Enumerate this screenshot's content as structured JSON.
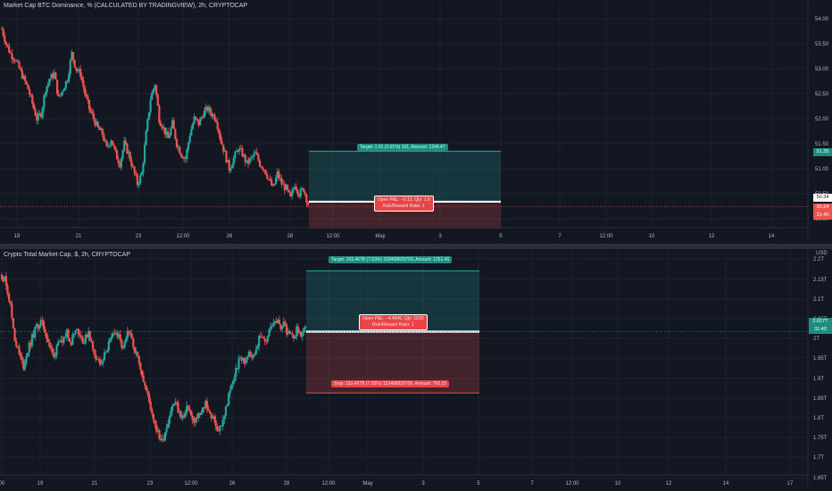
{
  "panels": [
    {
      "title": "Market Cap BTC Dominance, % (CALCULATED BY TRADINGVIEW), 2h, CRYPTOCAP",
      "price_ticks": [
        "54.00",
        "53.50",
        "53.00",
        "52.50",
        "52.00",
        "51.50",
        "51.00",
        "50.50",
        "50.00"
      ],
      "time_ticks": [
        "19",
        "21",
        "23",
        "12:00",
        "26",
        "28",
        "12:00",
        "May",
        "3",
        "5",
        "7",
        "12:00",
        "10",
        "12",
        "14"
      ],
      "current_price": "50.24",
      "countdown": "31:40",
      "target_price_label": "51.35",
      "entry_price_label": "50.34",
      "target_label": "Target: 1.01 (2.01%) 101, Amount: 1244.47",
      "open_pnl_label": "Open P&L: −0.12, Qty: 1.6",
      "risk_reward_label": "Risk/Reward Ratio: 1"
    },
    {
      "title": "Crypto Total Market Cap, $, 2h, CRYPTOCAP",
      "currency": "USD",
      "price_ticks": [
        "2.2T",
        "2.15T",
        "2.1T",
        "2.05T",
        "2T",
        "1.95T",
        "1.9T",
        "1.85T",
        "1.8T",
        "1.75T",
        "1.7T",
        "1.65T"
      ],
      "time_ticks": [
        "00",
        "19",
        "21",
        "23",
        "12:00",
        "26",
        "28",
        "12:00",
        "May",
        "3",
        "5",
        "7",
        "12:00",
        "10",
        "12",
        "14",
        "17"
      ],
      "current_price": "2.017T",
      "countdown": "31:40",
      "target_label": "Target: 153.467B (7.53%) 153468829709, Amount: 1251.46",
      "stop_label": "Stop: 153.467B (7.53%) 153468829709, Amount: 750.15",
      "open_pnl_label": "Open P&L: −4.4546, Qty: 1633",
      "risk_reward_label": "Risk/Reward Ratio: 1"
    }
  ],
  "colors": {
    "up": "#26a69a",
    "down": "#ef5350",
    "background": "#131722",
    "grid": "#1e222d"
  },
  "chart_data": [
    {
      "type": "candlestick",
      "title": "Market Cap BTC Dominance, % (CALCULATED BY TRADINGVIEW), 2h, CRYPTOCAP",
      "ylim": [
        49.8,
        54.2
      ],
      "x": [
        "19",
        "21",
        "23",
        "26",
        "28"
      ],
      "close_path": [
        53.8,
        53.5,
        53.3,
        53.2,
        53.0,
        52.8,
        52.6,
        52.3,
        52.0,
        52.1,
        52.6,
        52.8,
        52.9,
        52.4,
        52.6,
        52.8,
        53.3,
        53.0,
        52.9,
        52.5,
        52.2,
        52.0,
        51.8,
        51.7,
        51.4,
        51.6,
        51.3,
        51.1,
        51.5,
        51.3,
        51.0,
        50.7,
        50.9,
        51.7,
        52.4,
        52.7,
        52.0,
        51.8,
        51.6,
        51.9,
        51.5,
        51.3,
        51.2,
        51.7,
        52.0,
        51.9,
        52.1,
        52.2,
        52.1,
        52.0,
        51.6,
        51.3,
        51.0,
        51.2,
        51.4,
        51.3,
        51.1,
        51.2,
        51.3,
        51.1,
        51.0,
        50.8,
        50.6,
        50.9,
        50.7,
        50.6,
        50.4,
        50.7,
        50.5,
        50.6,
        50.3
      ],
      "target": 51.35,
      "entry": 50.34,
      "stop": 49.82
    },
    {
      "type": "candlestick",
      "title": "Crypto Total Market Cap, $, 2h, CRYPTOCAP",
      "unit": "T USD",
      "ylim": [
        1.64,
        2.24
      ],
      "x": [
        "19",
        "21",
        "23",
        "26",
        "28"
      ],
      "close_path": [
        2.16,
        2.14,
        2.08,
        2.0,
        1.96,
        1.93,
        1.97,
        2.0,
        2.03,
        2.04,
        2.02,
        1.98,
        1.95,
        2.0,
        1.98,
        2.02,
        1.99,
        2.03,
        2.01,
        1.99,
        2.02,
        1.97,
        1.95,
        1.93,
        1.97,
        1.99,
        2.02,
        2.0,
        1.97,
        2.01,
        2.0,
        1.96,
        1.93,
        1.88,
        1.84,
        1.8,
        1.76,
        1.74,
        1.78,
        1.82,
        1.84,
        1.81,
        1.8,
        1.83,
        1.79,
        1.8,
        1.81,
        1.84,
        1.81,
        1.79,
        1.77,
        1.79,
        1.84,
        1.88,
        1.92,
        1.95,
        1.94,
        1.97,
        1.95,
        1.99,
        2.01,
        1.99,
        2.03,
        2.05,
        2.03,
        2.04,
        2.01,
        2.0,
        2.02,
        2.01,
        2.02
      ],
      "target": 2.17,
      "entry": 2.017,
      "stop": 1.863
    }
  ]
}
